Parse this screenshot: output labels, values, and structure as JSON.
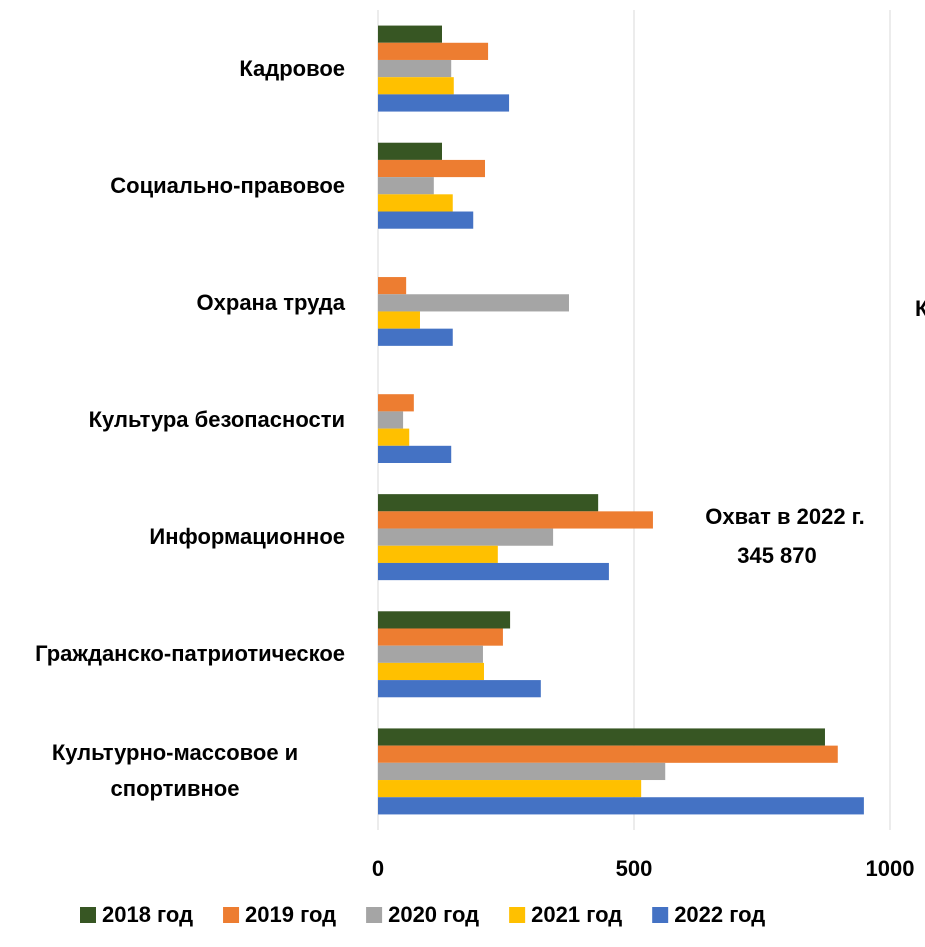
{
  "chart_data": {
    "type": "hbar",
    "categories": [
      "Кадровое",
      "Социально-правовое",
      "Охрана труда",
      "Культура безопасности",
      "Информационное",
      "Гражданско-патриотическое",
      "Культурно-массовое и спортивное"
    ],
    "series": [
      {
        "name": "2018 год",
        "color": "#375623",
        "values": [
          125,
          125,
          null,
          null,
          430,
          258,
          873
        ]
      },
      {
        "name": "2019 год",
        "color": "#ed7d31",
        "values": [
          215,
          209,
          55,
          70,
          537,
          244,
          898
        ]
      },
      {
        "name": "2020 год",
        "color": "#a5a5a5",
        "values": [
          143,
          109,
          373,
          49,
          342,
          205,
          561
        ]
      },
      {
        "name": "2021 год",
        "color": "#ffc000",
        "values": [
          148,
          146,
          82,
          61,
          234,
          207,
          514
        ]
      },
      {
        "name": "2022 год",
        "color": "#4472c4",
        "values": [
          256,
          186,
          146,
          143,
          451,
          318,
          949
        ]
      }
    ],
    "xlim": [
      0,
      1000
    ],
    "xticks": [
      0,
      500,
      1000
    ],
    "grid": true,
    "legend": "bottom",
    "annotations": [
      "Охват в 2022 г.",
      "345 870",
      "К"
    ]
  }
}
